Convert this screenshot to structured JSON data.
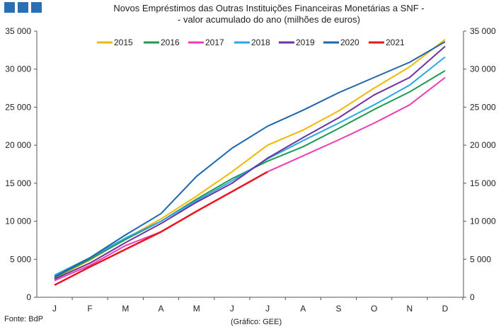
{
  "colors": {
    "logo": "#2a6fb4",
    "axis": "#555555"
  },
  "logo": {
    "blocks": 3
  },
  "footer": {
    "source": "Fonte: BdP",
    "credit": "(Gráfico: GEE)"
  },
  "chart_data": {
    "type": "line",
    "title": [
      "Novos Empréstimos das Outras Instituições Financeiras Monetárias a SNF -",
      "- valor acumulado do ano (milhões de euros)"
    ],
    "categories": [
      "J",
      "F",
      "M",
      "A",
      "M",
      "J",
      "J",
      "A",
      "S",
      "O",
      "N",
      "D"
    ],
    "ylim": [
      0,
      35000
    ],
    "yticks": [
      0,
      5000,
      10000,
      15000,
      20000,
      25000,
      30000,
      35000
    ],
    "ytick_labels": [
      "0",
      "5 000",
      "10 000",
      "15 000",
      "20 000",
      "25 000",
      "30 000",
      "35 000"
    ],
    "secondary_axis": true,
    "grid": false,
    "legend_position": "top",
    "series": [
      {
        "name": "2015",
        "color": "#f2b800",
        "values": [
          2500,
          4900,
          7700,
          10300,
          13300,
          16500,
          20000,
          22000,
          24500,
          27500,
          30300,
          33900
        ]
      },
      {
        "name": "2016",
        "color": "#1e9a52",
        "values": [
          2600,
          5000,
          7600,
          10000,
          12900,
          15600,
          17900,
          19800,
          22200,
          24700,
          27000,
          29800
        ]
      },
      {
        "name": "2017",
        "color": "#f03cb4",
        "values": [
          2200,
          4200,
          6800,
          8600,
          11300,
          13900,
          16500,
          18600,
          20700,
          22900,
          25300,
          28900
        ]
      },
      {
        "name": "2018",
        "color": "#2aa8e0",
        "values": [
          2900,
          5200,
          7800,
          10000,
          12700,
          15300,
          18200,
          20600,
          22900,
          25300,
          27900,
          31600
        ]
      },
      {
        "name": "2019",
        "color": "#7030a0",
        "values": [
          2400,
          4500,
          7200,
          9700,
          12500,
          15000,
          18300,
          21000,
          23600,
          26600,
          28900,
          33000
        ]
      },
      {
        "name": "2020",
        "color": "#1f65ad",
        "values": [
          2700,
          5200,
          8200,
          11000,
          15900,
          19600,
          22500,
          24600,
          26900,
          28900,
          30900,
          33600
        ]
      },
      {
        "name": "2021",
        "color": "#e8141e",
        "values": [
          1600,
          4000,
          6300,
          8600,
          11300,
          13900,
          16500,
          null,
          null,
          null,
          null,
          null
        ]
      }
    ]
  }
}
